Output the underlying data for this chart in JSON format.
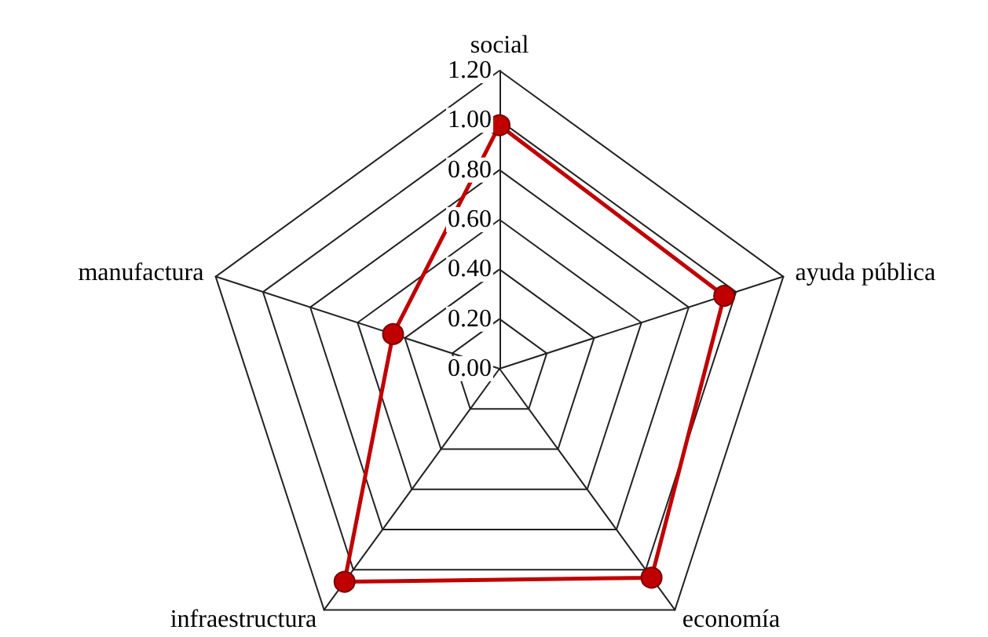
{
  "chart_data": {
    "type": "radar",
    "categories": [
      "social",
      "ayuda pública",
      "economía",
      "infraestructura",
      "manufactura"
    ],
    "series": [
      {
        "color": "#c00000",
        "values": [
          0.98,
          0.95,
          1.04,
          1.06,
          0.45
        ]
      }
    ],
    "ylim": [
      0,
      1.2
    ],
    "yticks": [
      {
        "value": 0,
        "label": "0.00"
      },
      {
        "value": 0.2,
        "label": "0.20"
      },
      {
        "value": 0.4,
        "label": "0.40"
      },
      {
        "value": 0.6,
        "label": "0.60"
      },
      {
        "value": 0.8,
        "label": "0.80"
      },
      {
        "value": 1,
        "label": "1.00"
      },
      {
        "value": 1.2,
        "label": "1.20"
      }
    ],
    "marker": "circle"
  }
}
